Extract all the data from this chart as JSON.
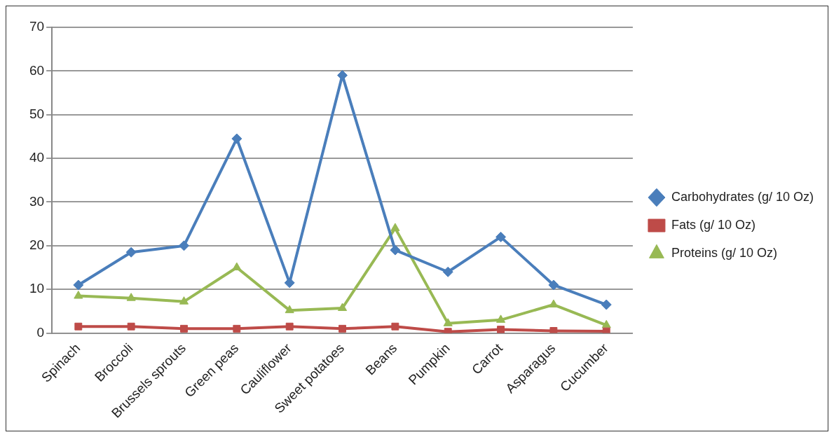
{
  "chart_data": {
    "type": "line",
    "categories": [
      "Spinach",
      "Broccoli",
      "Brussels sprouts",
      "Green peas",
      "Cauliflower",
      "Sweet potatoes",
      "Beans",
      "Pumpkin",
      "Carrot",
      "Asparagus",
      "Cucumber"
    ],
    "series": [
      {
        "name": "Carbohydrates (g/ 10 Oz)",
        "color": "#4a7ebb",
        "marker": "diamond",
        "values": [
          11,
          18.5,
          20,
          44.5,
          11.5,
          59,
          19,
          14,
          22,
          11,
          6.5
        ]
      },
      {
        "name": "Fats (g/ 10 Oz)",
        "color": "#be4b48",
        "marker": "square",
        "values": [
          1.5,
          1.5,
          1,
          1,
          1.5,
          1,
          1.5,
          0.3,
          0.8,
          0.5,
          0.4
        ]
      },
      {
        "name": "Proteins (g/ 10 Oz)",
        "color": "#98b954",
        "marker": "triangle",
        "values": [
          8.5,
          8,
          7.2,
          15,
          5.2,
          5.7,
          24,
          2.2,
          3,
          6.5,
          1.8
        ]
      }
    ],
    "ylim": [
      0,
      70
    ],
    "yticks": [
      0,
      10,
      20,
      30,
      40,
      50,
      60,
      70
    ],
    "grid": "y",
    "legend": "right",
    "line_style": "solid"
  }
}
